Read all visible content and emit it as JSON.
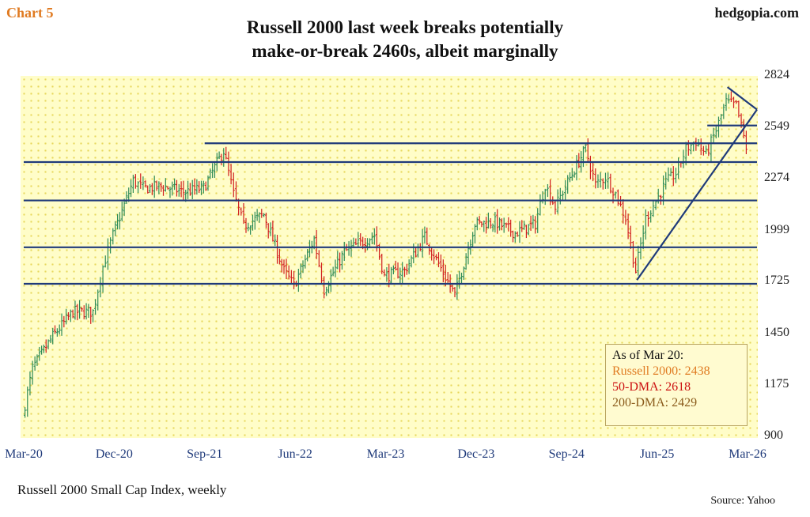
{
  "header": {
    "chart_label": "Chart 5",
    "brand": "hedgopia.com",
    "title_line1": "Russell 2000 last week breaks potentially",
    "title_line2": "make-or-break 2460s, albeit marginally"
  },
  "legend": {
    "header": "As of Mar 20:",
    "line1": "Russell 2000: 2438",
    "line2": "50-DMA: 2618",
    "line3": "200-DMA: 2429"
  },
  "footer": {
    "subtitle": "Russell 2000 Small Cap Index, weekly",
    "source": "Source: Yahoo"
  },
  "colors": {
    "plot_background": "#fffdc8",
    "up_bar": "#2e8b57",
    "down_bar": "#d11f1f",
    "trendline": "#1f3a7a",
    "legend_price": "#e07b22",
    "legend_50dma": "#cc1111",
    "legend_200dma": "#8a5a1a"
  },
  "chart_data": {
    "type": "bar",
    "style": "weekly OHLC bars",
    "ylim": [
      900,
      2824
    ],
    "y_ticks": [
      900,
      1175,
      1450,
      1725,
      1999,
      2274,
      2549,
      2824
    ],
    "x_ticks": [
      "Mar-20",
      "Dec-20",
      "Sep-21",
      "Jun-22",
      "Mar-23",
      "Dec-23",
      "Sep-24",
      "Jun-25",
      "Mar-26"
    ],
    "anchors": [
      {
        "date": "Mar-20",
        "close": 1000
      },
      {
        "date": "Apr-20",
        "close": 1260
      },
      {
        "date": "Jun-20",
        "close": 1430
      },
      {
        "date": "Aug-20",
        "close": 1560
      },
      {
        "date": "Oct-20",
        "close": 1560
      },
      {
        "date": "Nov-20",
        "close": 1800
      },
      {
        "date": "Dec-20",
        "close": 1970
      },
      {
        "date": "Feb-21",
        "close": 2260
      },
      {
        "date": "Mar-21",
        "close": 2220
      },
      {
        "date": "May-21",
        "close": 2230
      },
      {
        "date": "Jul-21",
        "close": 2200
      },
      {
        "date": "Sep-21",
        "close": 2220
      },
      {
        "date": "Nov-21",
        "close": 2420
      },
      {
        "date": "Dec-21",
        "close": 2190
      },
      {
        "date": "Jan-22",
        "close": 2020
      },
      {
        "date": "Mar-22",
        "close": 2080
      },
      {
        "date": "May-22",
        "close": 1780
      },
      {
        "date": "Jun-22",
        "close": 1700
      },
      {
        "date": "Aug-22",
        "close": 1950
      },
      {
        "date": "Sep-22",
        "close": 1680
      },
      {
        "date": "Nov-22",
        "close": 1880
      },
      {
        "date": "Feb-23",
        "close": 1970
      },
      {
        "date": "Mar-23",
        "close": 1750
      },
      {
        "date": "May-23",
        "close": 1780
      },
      {
        "date": "Jul-23",
        "close": 1960
      },
      {
        "date": "Oct-23",
        "close": 1650
      },
      {
        "date": "Dec-23",
        "close": 2030
      },
      {
        "date": "Feb-24",
        "close": 2040
      },
      {
        "date": "Apr-24",
        "close": 1980
      },
      {
        "date": "Jun-24",
        "close": 2030
      },
      {
        "date": "Jul-24",
        "close": 2240
      },
      {
        "date": "Aug-24",
        "close": 2120
      },
      {
        "date": "Sep-24",
        "close": 2230
      },
      {
        "date": "Nov-24",
        "close": 2430
      },
      {
        "date": "Dec-24",
        "close": 2240
      },
      {
        "date": "Jan-25",
        "close": 2280
      },
      {
        "date": "Feb-25",
        "close": 2190
      },
      {
        "date": "Mar-25",
        "close": 2060
      },
      {
        "date": "Apr-25",
        "close": 1780
      },
      {
        "date": "May-25",
        "close": 2060
      },
      {
        "date": "Jun-25",
        "close": 2150
      },
      {
        "date": "Jul-25",
        "close": 2250
      },
      {
        "date": "Aug-25",
        "close": 2300
      },
      {
        "date": "Sep-25",
        "close": 2430
      },
      {
        "date": "Oct-25",
        "close": 2470
      },
      {
        "date": "Nov-25",
        "close": 2400
      },
      {
        "date": "Dec-25",
        "close": 2530
      },
      {
        "date": "Jan-26",
        "close": 2680
      },
      {
        "date": "Feb-26",
        "close": 2660
      },
      {
        "date": "Mar-26",
        "close": 2438
      }
    ],
    "horizontal_levels": [
      {
        "level": 1710,
        "from": "Mar-20",
        "to": "Mar-26"
      },
      {
        "level": 1905,
        "from": "Mar-20",
        "to": "Mar-26"
      },
      {
        "level": 2155,
        "from": "Mar-20",
        "to": "Mar-26"
      },
      {
        "level": 2360,
        "from": "Mar-20",
        "to": "Mar-26"
      },
      {
        "level": 2460,
        "from": "Sep-21",
        "to": "Mar-26"
      },
      {
        "level": 2555,
        "from": "Nov-25",
        "to": "Mar-26"
      }
    ],
    "trendlines": [
      {
        "from": {
          "date": "Apr-25",
          "value": 1730
        },
        "to": {
          "date": "Mar-26",
          "value": 2640
        }
      },
      {
        "from": {
          "date": "Jan-26",
          "value": 2760
        },
        "to": {
          "date": "Mar-26",
          "value": 2640
        }
      }
    ]
  }
}
